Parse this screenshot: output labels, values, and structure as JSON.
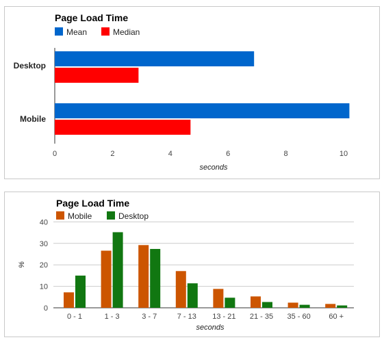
{
  "chart_data": [
    {
      "type": "bar",
      "orientation": "horizontal",
      "title": "Page Load Time",
      "categories": [
        "Desktop",
        "Mobile"
      ],
      "series": [
        {
          "name": "Mean",
          "color": "#0066cc",
          "values": [
            6.9,
            10.2
          ]
        },
        {
          "name": "Median",
          "color": "#ff0000",
          "values": [
            2.9,
            4.7
          ]
        }
      ],
      "xlabel": "seconds",
      "ylabel": "",
      "xlim": [
        0,
        10.5
      ],
      "ticks": [
        0,
        2,
        4,
        6,
        8,
        10
      ],
      "legend": "top-left",
      "grid": false
    },
    {
      "type": "bar",
      "orientation": "vertical",
      "title": "Page Load Time",
      "categories": [
        "0 - 1",
        "1 - 3",
        "3 - 7",
        "7 - 13",
        "13 - 21",
        "21 - 35",
        "35 - 60",
        "60 +"
      ],
      "series": [
        {
          "name": "Mobile",
          "color": "#cc5500",
          "values": [
            7.2,
            26.6,
            29.2,
            17.1,
            8.8,
            5.3,
            2.4,
            1.8
          ]
        },
        {
          "name": "Desktop",
          "color": "#117711",
          "values": [
            15.0,
            35.2,
            27.4,
            11.4,
            4.7,
            2.7,
            1.4,
            1.1
          ]
        }
      ],
      "xlabel": "seconds",
      "ylabel": "%",
      "ylim": [
        0,
        40
      ],
      "ticks": [
        0,
        10,
        20,
        30,
        40
      ],
      "legend": "top-left",
      "grid": true
    }
  ]
}
